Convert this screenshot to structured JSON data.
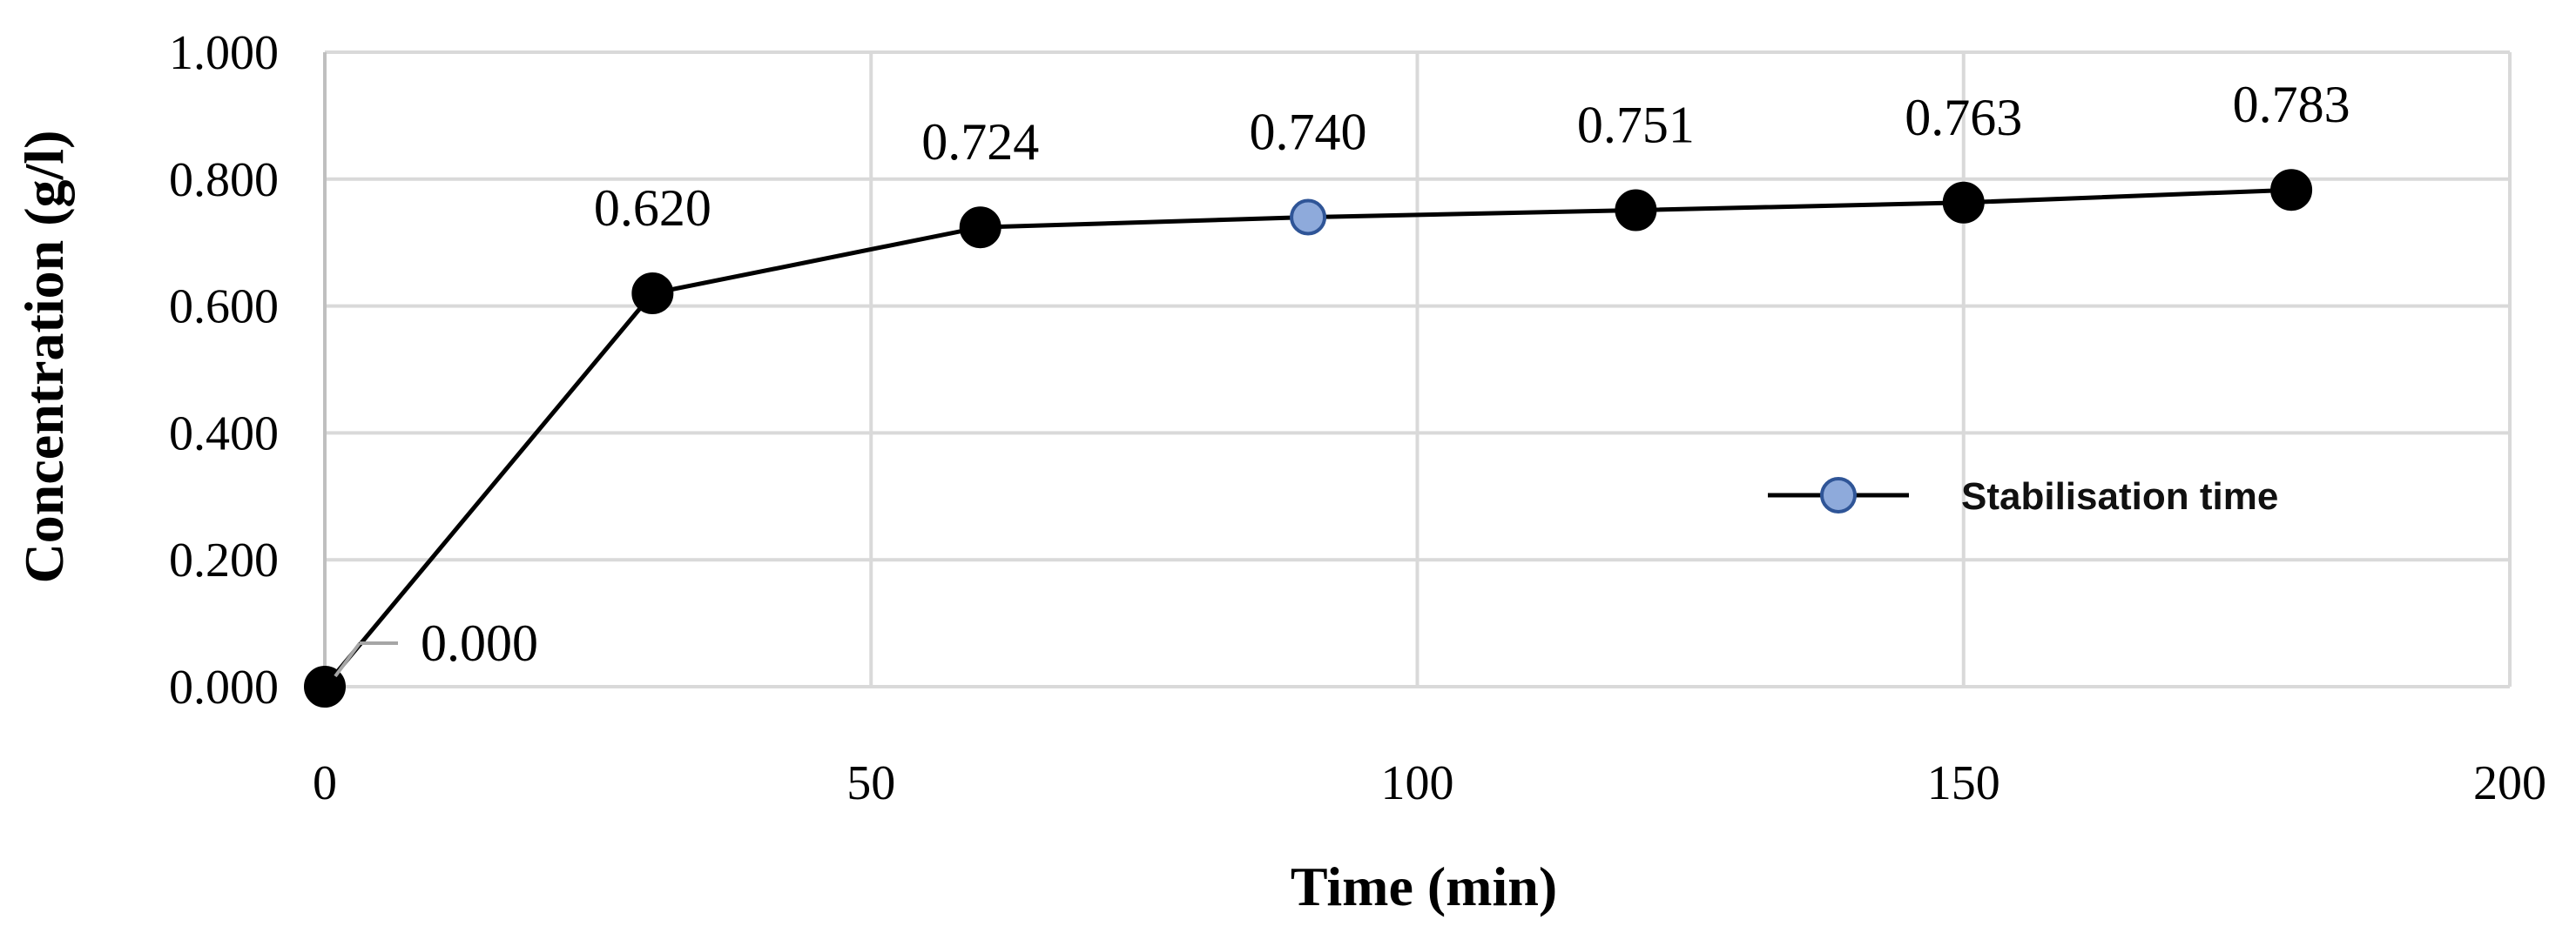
{
  "chart_data": {
    "type": "line",
    "x": [
      0,
      30,
      60,
      90,
      120,
      150,
      180
    ],
    "series": [
      {
        "values": [
          0.0,
          0.62,
          0.724,
          0.74,
          0.751,
          0.763,
          0.783
        ],
        "data_labels": [
          "0.000",
          "0.620",
          "0.724",
          "0.740",
          "0.751",
          "0.763",
          "0.783"
        ],
        "highlight_index": 3,
        "marker_color": "#000000",
        "highlight_color": "#8eaadb",
        "highlight_edge_color": "#2f5597"
      }
    ],
    "xlabel": "Time (min)",
    "ylabel": "Concentration (g/l)",
    "xlim": [
      0,
      200
    ],
    "ylim": [
      0,
      1
    ],
    "xticks": [
      0,
      50,
      100,
      150,
      200
    ],
    "xtick_labels": [
      "0",
      "50",
      "100",
      "150",
      "200"
    ],
    "yticks": [
      0,
      0.2,
      0.4,
      0.6,
      0.8,
      1.0
    ],
    "ytick_labels": [
      "0.000",
      "0.200",
      "0.400",
      "0.600",
      "0.800",
      "1.000"
    ],
    "grid": true,
    "legend": {
      "entries": [
        "Stabilisation time"
      ],
      "position": "right"
    }
  }
}
